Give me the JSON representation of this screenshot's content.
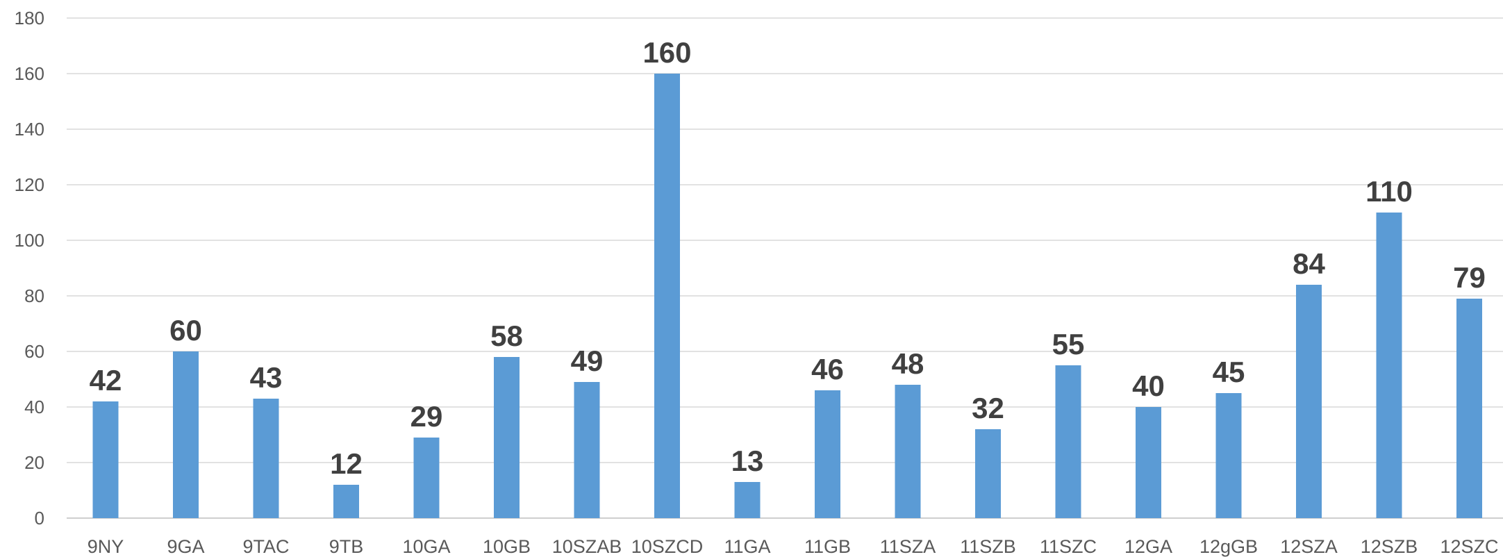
{
  "chart_data": {
    "type": "bar",
    "title": "",
    "xlabel": "",
    "ylabel": "",
    "categories": [
      "9NY",
      "9GA",
      "9TAC",
      "9TB",
      "10GA",
      "10GB",
      "10SZAB",
      "10SZCD",
      "11GA",
      "11GB",
      "11SZA",
      "11SZB",
      "11SZC",
      "12GA",
      "12gGB",
      "12SZA",
      "12SZB",
      "12SZC"
    ],
    "values": [
      42,
      60,
      43,
      12,
      29,
      58,
      49,
      160,
      13,
      46,
      48,
      32,
      55,
      40,
      45,
      84,
      110,
      79
    ],
    "ylim": [
      0,
      180
    ],
    "yticks": [
      0,
      20,
      40,
      60,
      80,
      100,
      120,
      140,
      160,
      180
    ],
    "grid": true,
    "legend": "none",
    "bar_color": "#5b9bd5",
    "data_labels": true
  }
}
